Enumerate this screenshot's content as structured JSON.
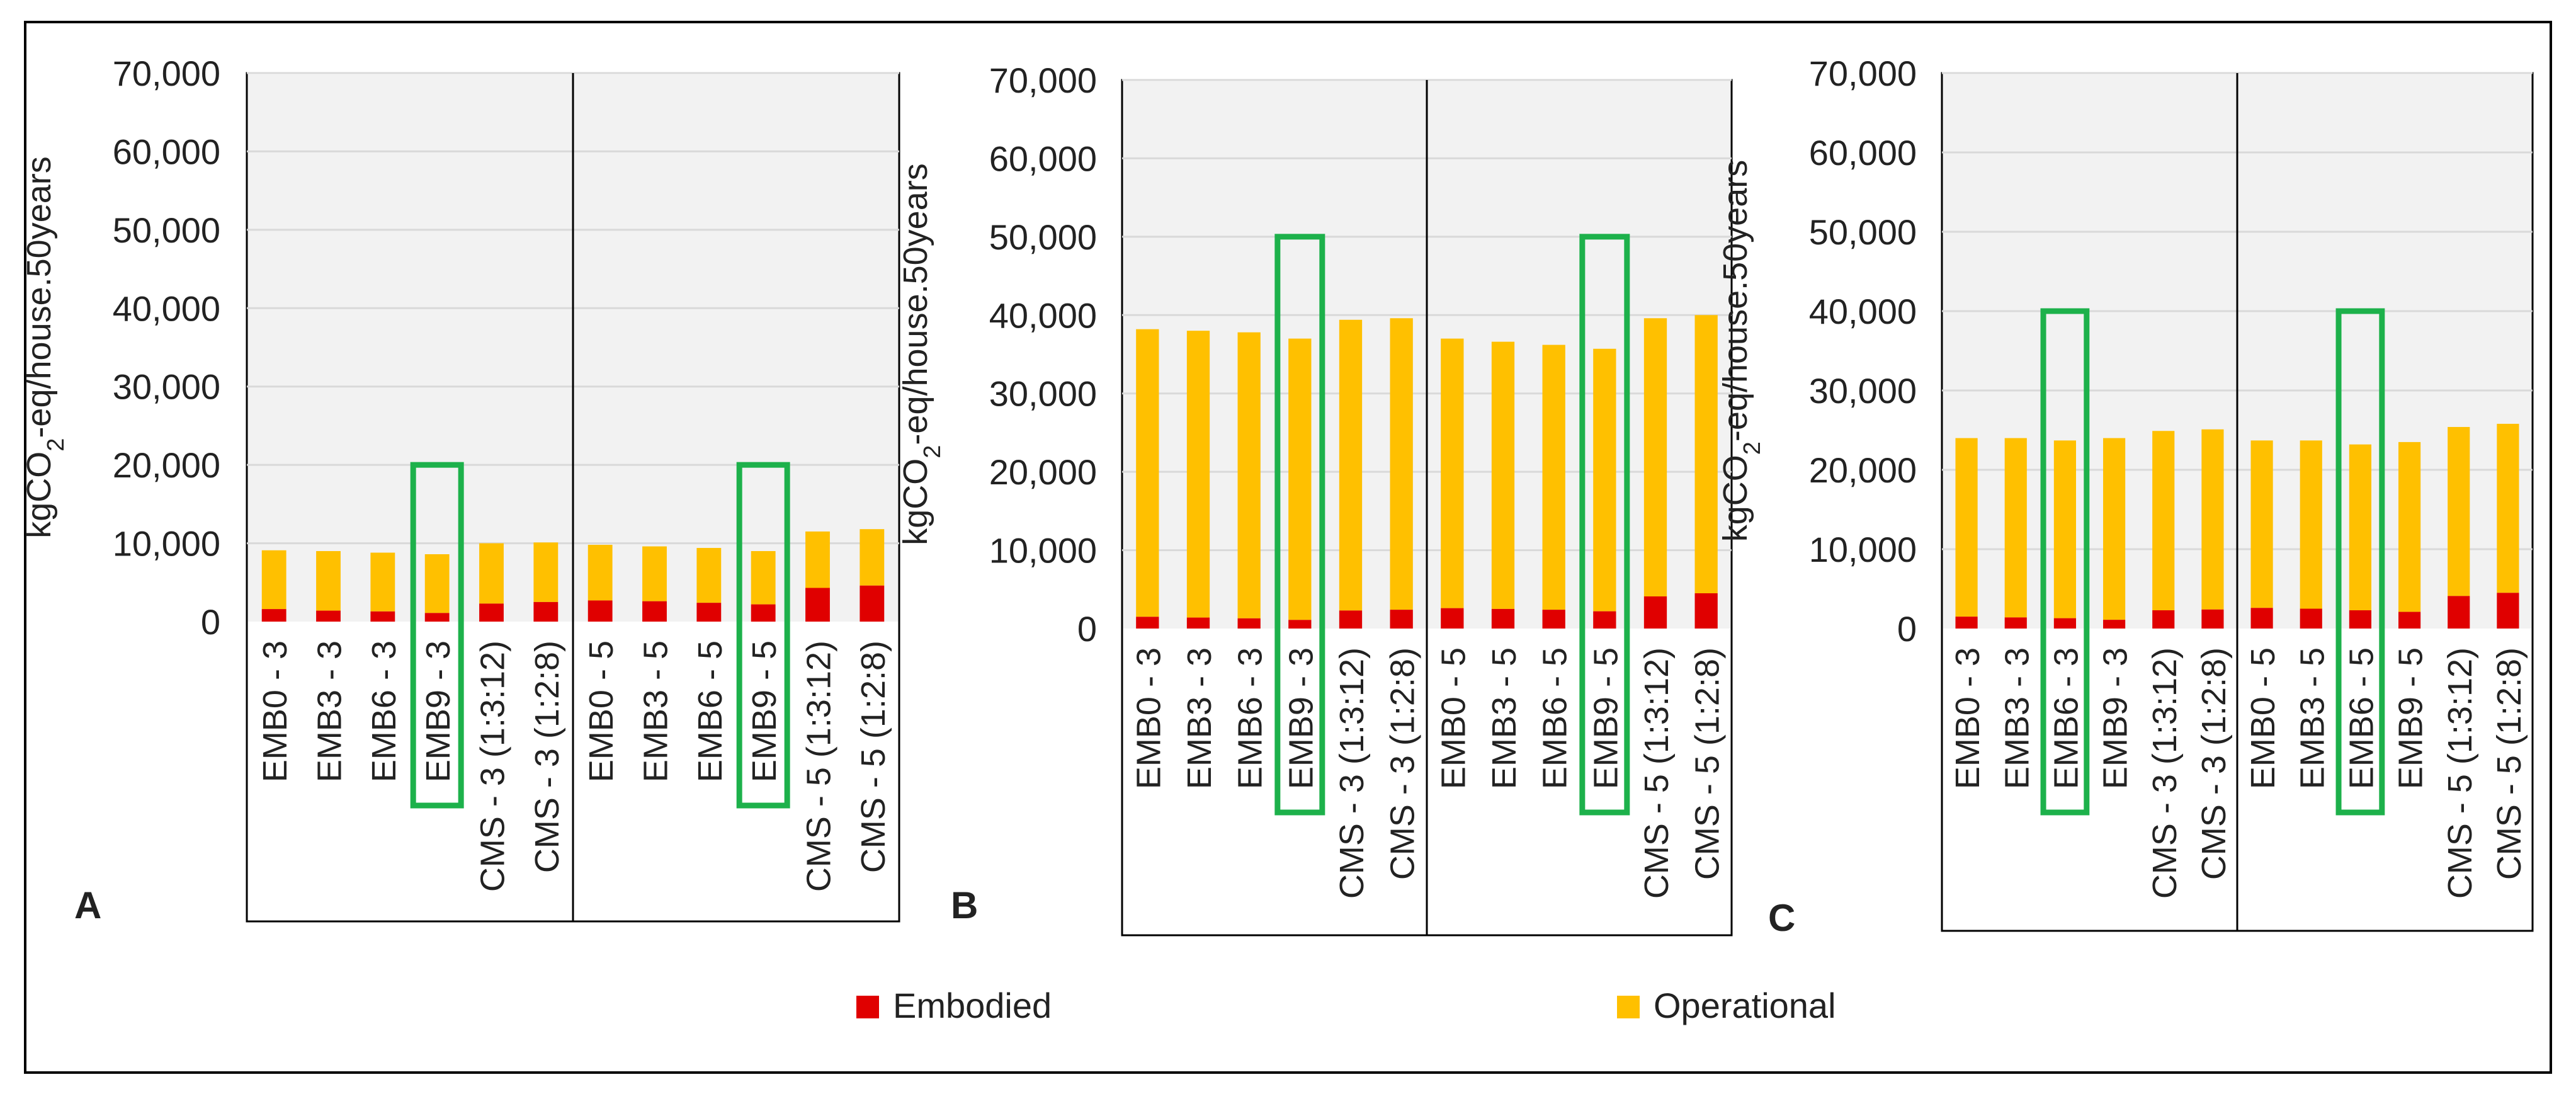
{
  "colors": {
    "embodied": "#e00000",
    "operational": "#ffc000",
    "plot_bg": "#f2f2f2",
    "gridline": "#d9d9d9",
    "highlight": "#1db14b",
    "axis": "#000000"
  },
  "legend": {
    "embodied_label": "Embodied",
    "operational_label": "Operational"
  },
  "chart_data": [
    {
      "type": "bar",
      "stacked": true,
      "panel_label": "A",
      "ylabel_prefix": "kgCO",
      "ylabel_sub": "2",
      "ylabel_suffix": "-eq/house.50years",
      "yticks": [
        "0",
        "10,000",
        "20,000",
        "30,000",
        "40,000",
        "50,000",
        "60,000",
        "70,000"
      ],
      "ylim": [
        0,
        70000
      ],
      "categories": [
        "EMB0 - 3",
        "EMB3 - 3",
        "EMB6 - 3",
        "EMB9 - 3",
        "CMS - 3 (1:3:12)",
        "CMS - 3 (1:2:8)",
        "EMB0 - 5",
        "EMB3 - 5",
        "EMB6 - 5",
        "EMB9 - 5",
        "CMS - 5 (1:3:12)",
        "CMS - 5 (1:2:8)"
      ],
      "series": [
        {
          "name": "Embodied",
          "values": [
            1600,
            1400,
            1300,
            1100,
            2300,
            2500,
            2700,
            2600,
            2400,
            2200,
            4300,
            4600
          ]
        },
        {
          "name": "Operational",
          "values": [
            7500,
            7600,
            7500,
            7500,
            7700,
            7600,
            7100,
            7000,
            7000,
            6800,
            7200,
            7200
          ]
        }
      ],
      "group_divider_after": 5,
      "highlighted_categories": [
        "EMB9 - 3",
        "EMB9 - 5"
      ],
      "highlight_top": 20000
    },
    {
      "type": "bar",
      "stacked": true,
      "panel_label": "B",
      "ylabel_prefix": "kgCO",
      "ylabel_sub": "2",
      "ylabel_suffix": "-eq/house.50years",
      "yticks": [
        "0",
        "10,000",
        "20,000",
        "30,000",
        "40,000",
        "50,000",
        "60,000",
        "70,000"
      ],
      "ylim": [
        0,
        70000
      ],
      "categories": [
        "EMB0 - 3",
        "EMB3 - 3",
        "EMB6 - 3",
        "EMB9 - 3",
        "CMS - 3 (1:3:12)",
        "CMS - 3 (1:2:8)",
        "EMB0 - 5",
        "EMB3 - 5",
        "EMB6 - 5",
        "EMB9 - 5",
        "CMS - 5 (1:3:12)",
        "CMS - 5 (1:2:8)"
      ],
      "series": [
        {
          "name": "Embodied",
          "values": [
            1500,
            1400,
            1300,
            1100,
            2300,
            2400,
            2600,
            2500,
            2400,
            2200,
            4100,
            4500
          ]
        },
        {
          "name": "Operational",
          "values": [
            36700,
            36600,
            36500,
            35900,
            37100,
            37200,
            34400,
            34100,
            33800,
            33500,
            35500,
            35500
          ]
        }
      ],
      "group_divider_after": 5,
      "highlighted_categories": [
        "EMB9 - 3",
        "EMB9 - 5"
      ],
      "highlight_top": 50000
    },
    {
      "type": "bar",
      "stacked": true,
      "panel_label": "C",
      "ylabel_prefix": "kgCO",
      "ylabel_sub": "2",
      "ylabel_suffix": "-eq/house.50years",
      "yticks": [
        "0",
        "10,000",
        "20,000",
        "30,000",
        "40,000",
        "50,000",
        "60,000",
        "70,000"
      ],
      "ylim": [
        0,
        70000
      ],
      "categories": [
        "EMB0 - 3",
        "EMB3 - 3",
        "EMB6 - 3",
        "EMB9 - 3",
        "CMS - 3 (1:3:12)",
        "CMS - 3 (1:2:8)",
        "EMB0 - 5",
        "EMB3 - 5",
        "EMB6 - 5",
        "EMB9 - 5",
        "CMS - 5 (1:3:12)",
        "CMS - 5 (1:2:8)"
      ],
      "series": [
        {
          "name": "Embodied",
          "values": [
            1500,
            1400,
            1300,
            1100,
            2300,
            2400,
            2600,
            2500,
            2300,
            2100,
            4100,
            4500
          ]
        },
        {
          "name": "Operational",
          "values": [
            22500,
            22600,
            22400,
            22900,
            22600,
            22700,
            21100,
            21200,
            20900,
            21400,
            21300,
            21300
          ]
        }
      ],
      "group_divider_after": 5,
      "highlighted_categories": [
        "EMB6 - 3",
        "EMB6 - 5"
      ],
      "highlight_top": 40000
    }
  ]
}
